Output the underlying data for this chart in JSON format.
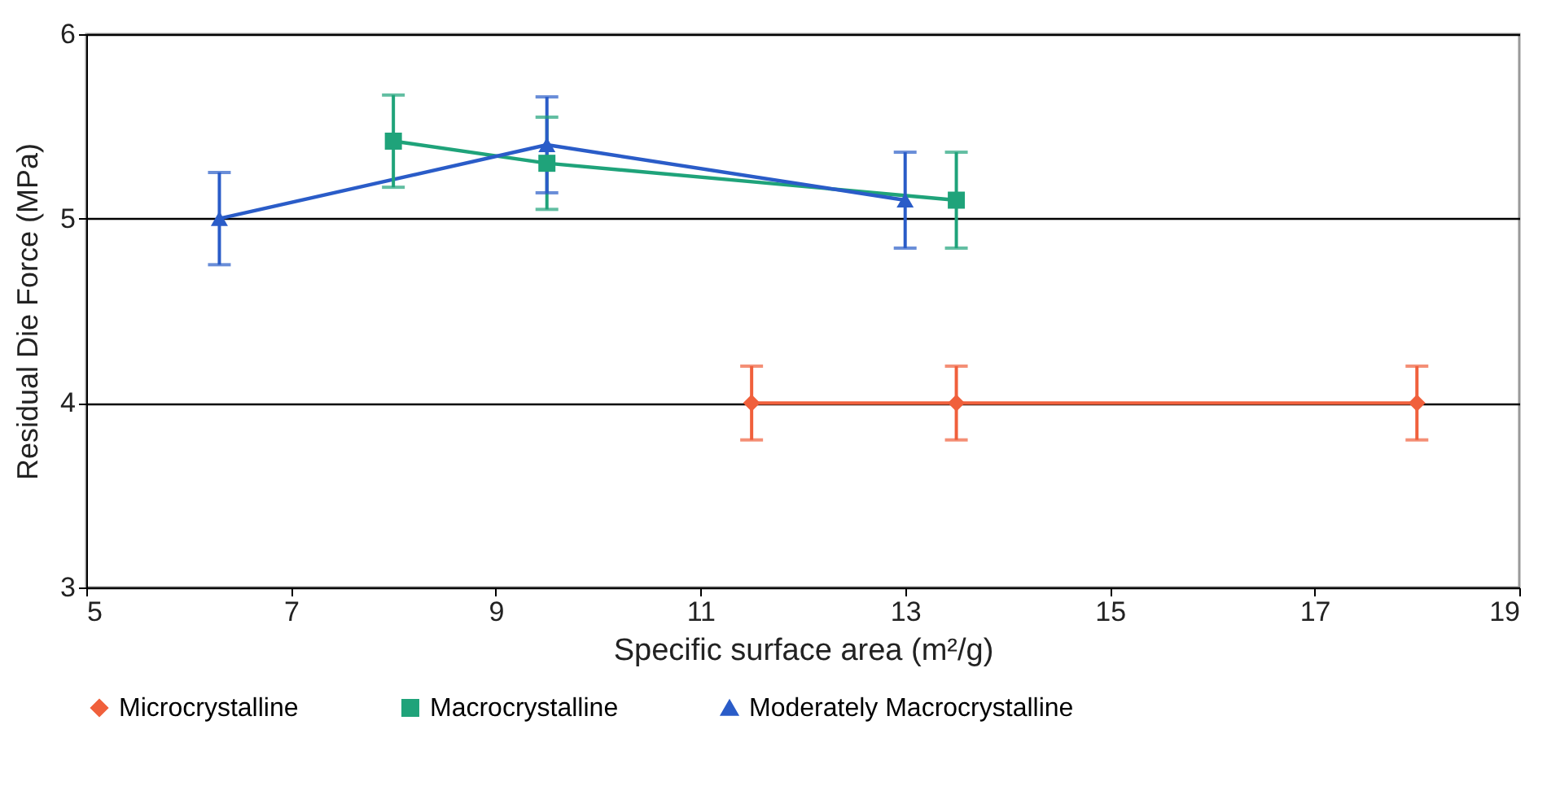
{
  "chart_data": {
    "type": "line",
    "xlabel": "Specific surface area (m²/g)",
    "ylabel": "Residual Die Force (MPa)",
    "xlim": [
      5,
      19
    ],
    "xticks": [
      5,
      7,
      9,
      11,
      13,
      15,
      17,
      19
    ],
    "ylim": [
      3,
      6
    ],
    "yticks": [
      3,
      4,
      5,
      6
    ],
    "grid": "y",
    "legend": "bottom",
    "series": [
      {
        "name": "Microcrystalline",
        "color": "#f0603c",
        "marker": "diamond",
        "x": [
          11.5,
          13.5,
          18
        ],
        "values": [
          4.0,
          4.0,
          4.0
        ],
        "errors": [
          0.2,
          0.2,
          0.2
        ]
      },
      {
        "name": "Macrocrystalline",
        "color": "#1fa37a",
        "marker": "square",
        "x": [
          8,
          9.5,
          13.5
        ],
        "values": [
          5.42,
          5.3,
          5.1
        ],
        "errors": [
          0.25,
          0.25,
          0.26
        ]
      },
      {
        "name": "Moderately Macrocrystalline",
        "color": "#2a5cc8",
        "marker": "triangle",
        "x": [
          6.3,
          9.5,
          13
        ],
        "values": [
          5.0,
          5.4,
          5.1
        ],
        "errors": [
          0.25,
          0.26,
          0.26
        ]
      }
    ]
  }
}
